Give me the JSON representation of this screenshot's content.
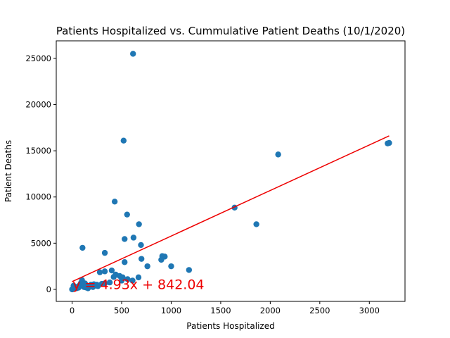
{
  "chart_data": {
    "type": "scatter",
    "title": "Patients Hospitalized vs. Cummulative Patient Deaths (10/1/2020)",
    "xlabel": "Patients Hospitalized",
    "ylabel": "Patient Deaths",
    "xlim": [
      -160,
      3360
    ],
    "ylim": [
      -1300,
      26900
    ],
    "xticks": [
      0,
      500,
      1000,
      1500,
      2000,
      2500,
      3000
    ],
    "yticks": [
      0,
      5000,
      10000,
      15000,
      20000,
      25000
    ],
    "grid": false,
    "point_color": "#1f77b4",
    "regression": {
      "slope": 4.93,
      "intercept": 842.04,
      "x_range": [
        0,
        3200
      ],
      "color": "#ee0000",
      "equation_label": "y = 4.93x + 842.04",
      "label_anchor": [
        5,
        50
      ]
    },
    "points": [
      [
        615,
        25500
      ],
      [
        520,
        16100
      ],
      [
        2080,
        14600
      ],
      [
        3185,
        15800
      ],
      [
        3200,
        15850
      ],
      [
        430,
        9500
      ],
      [
        555,
        8100
      ],
      [
        1640,
        8850
      ],
      [
        1860,
        7050
      ],
      [
        675,
        7050
      ],
      [
        620,
        5600
      ],
      [
        530,
        5450
      ],
      [
        695,
        4800
      ],
      [
        105,
        4500
      ],
      [
        330,
        3950
      ],
      [
        910,
        3600
      ],
      [
        935,
        3550
      ],
      [
        900,
        3200
      ],
      [
        700,
        3300
      ],
      [
        530,
        2950
      ],
      [
        760,
        2500
      ],
      [
        1000,
        2500
      ],
      [
        1180,
        2100
      ],
      [
        400,
        2050
      ],
      [
        330,
        1950
      ],
      [
        280,
        1850
      ],
      [
        440,
        1600
      ],
      [
        480,
        1450
      ],
      [
        510,
        1300
      ],
      [
        560,
        1100
      ],
      [
        670,
        1300
      ],
      [
        420,
        1350
      ],
      [
        610,
        950
      ],
      [
        500,
        950
      ],
      [
        330,
        650
      ],
      [
        380,
        750
      ],
      [
        300,
        600
      ],
      [
        250,
        500
      ],
      [
        200,
        450
      ],
      [
        170,
        350
      ],
      [
        150,
        400
      ],
      [
        120,
        250
      ],
      [
        100,
        1000
      ],
      [
        90,
        700
      ],
      [
        80,
        500
      ],
      [
        60,
        300
      ],
      [
        50,
        200
      ],
      [
        40,
        150
      ],
      [
        30,
        100
      ],
      [
        20,
        80
      ],
      [
        10,
        50
      ],
      [
        5,
        20
      ],
      [
        2,
        0
      ],
      [
        15,
        400
      ],
      [
        25,
        300
      ],
      [
        35,
        250
      ],
      [
        45,
        120
      ],
      [
        65,
        180
      ],
      [
        75,
        350
      ],
      [
        110,
        550
      ],
      [
        130,
        650
      ],
      [
        140,
        200
      ],
      [
        160,
        120
      ],
      [
        180,
        300
      ],
      [
        210,
        250
      ],
      [
        230,
        400
      ],
      [
        260,
        350
      ],
      [
        190,
        500
      ],
      [
        220,
        550
      ],
      [
        0,
        10
      ]
    ]
  }
}
